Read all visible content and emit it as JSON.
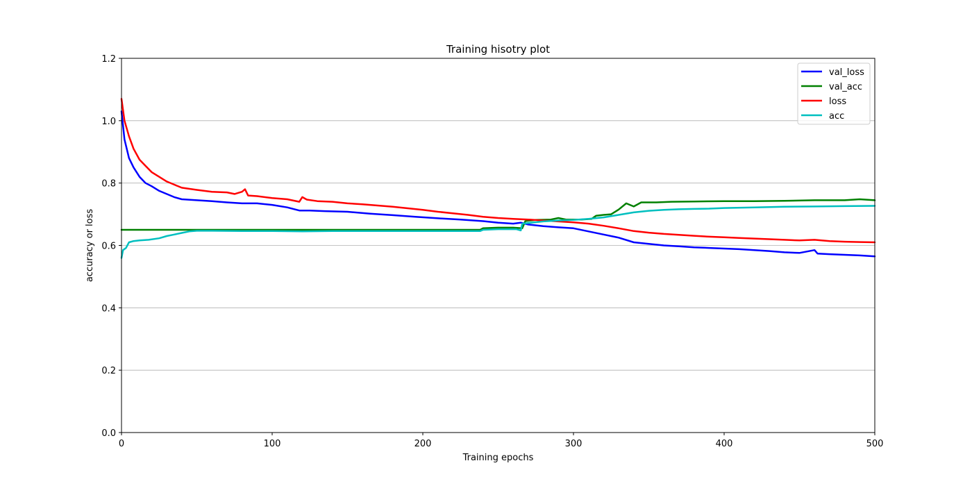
{
  "chart_data": {
    "type": "line",
    "title": "Training hisotry plot",
    "xlabel": "Training epochs",
    "ylabel": "accuracy or loss",
    "xlim": [
      0,
      500
    ],
    "ylim": [
      0,
      1.2
    ],
    "xticks": [
      0,
      100,
      200,
      300,
      400,
      500
    ],
    "yticks": [
      0.0,
      0.2,
      0.4,
      0.6,
      0.8,
      1.0,
      1.2
    ],
    "xtick_labels": [
      "0",
      "100",
      "200",
      "300",
      "400",
      "500"
    ],
    "ytick_labels": [
      "0.0",
      "0.2",
      "0.4",
      "0.6",
      "0.8",
      "1.0",
      "1.2"
    ],
    "grid": "horizontal",
    "legend_position": "top-right",
    "series": [
      {
        "name": "val_loss",
        "color": "#0000ff",
        "points": [
          [
            0,
            1.03
          ],
          [
            2,
            0.94
          ],
          [
            5,
            0.88
          ],
          [
            8,
            0.85
          ],
          [
            12,
            0.82
          ],
          [
            16,
            0.8
          ],
          [
            20,
            0.79
          ],
          [
            25,
            0.775
          ],
          [
            30,
            0.765
          ],
          [
            35,
            0.755
          ],
          [
            40,
            0.748
          ],
          [
            50,
            0.745
          ],
          [
            60,
            0.742
          ],
          [
            70,
            0.738
          ],
          [
            80,
            0.735
          ],
          [
            90,
            0.735
          ],
          [
            100,
            0.73
          ],
          [
            110,
            0.722
          ],
          [
            118,
            0.712
          ],
          [
            125,
            0.712
          ],
          [
            135,
            0.71
          ],
          [
            150,
            0.708
          ],
          [
            165,
            0.702
          ],
          [
            180,
            0.697
          ],
          [
            195,
            0.692
          ],
          [
            210,
            0.687
          ],
          [
            225,
            0.683
          ],
          [
            240,
            0.678
          ],
          [
            250,
            0.673
          ],
          [
            260,
            0.67
          ],
          [
            265,
            0.673
          ],
          [
            270,
            0.667
          ],
          [
            280,
            0.662
          ],
          [
            290,
            0.658
          ],
          [
            300,
            0.655
          ],
          [
            310,
            0.645
          ],
          [
            320,
            0.635
          ],
          [
            330,
            0.625
          ],
          [
            340,
            0.61
          ],
          [
            350,
            0.605
          ],
          [
            360,
            0.6
          ],
          [
            370,
            0.597
          ],
          [
            380,
            0.594
          ],
          [
            390,
            0.592
          ],
          [
            400,
            0.59
          ],
          [
            410,
            0.588
          ],
          [
            420,
            0.585
          ],
          [
            430,
            0.582
          ],
          [
            440,
            0.578
          ],
          [
            450,
            0.576
          ],
          [
            460,
            0.585
          ],
          [
            462,
            0.574
          ],
          [
            470,
            0.572
          ],
          [
            480,
            0.57
          ],
          [
            490,
            0.568
          ],
          [
            500,
            0.565
          ]
        ]
      },
      {
        "name": "val_acc",
        "color": "#008000",
        "points": [
          [
            0,
            0.65
          ],
          [
            50,
            0.65
          ],
          [
            100,
            0.65
          ],
          [
            150,
            0.65
          ],
          [
            200,
            0.65
          ],
          [
            238,
            0.65
          ],
          [
            240,
            0.655
          ],
          [
            250,
            0.657
          ],
          [
            260,
            0.657
          ],
          [
            266,
            0.655
          ],
          [
            268,
            0.678
          ],
          [
            275,
            0.682
          ],
          [
            285,
            0.683
          ],
          [
            290,
            0.688
          ],
          [
            295,
            0.683
          ],
          [
            305,
            0.683
          ],
          [
            312,
            0.685
          ],
          [
            315,
            0.695
          ],
          [
            320,
            0.698
          ],
          [
            325,
            0.7
          ],
          [
            330,
            0.715
          ],
          [
            335,
            0.735
          ],
          [
            340,
            0.725
          ],
          [
            345,
            0.738
          ],
          [
            355,
            0.738
          ],
          [
            365,
            0.74
          ],
          [
            380,
            0.741
          ],
          [
            400,
            0.742
          ],
          [
            420,
            0.742
          ],
          [
            440,
            0.743
          ],
          [
            460,
            0.745
          ],
          [
            480,
            0.745
          ],
          [
            490,
            0.748
          ],
          [
            500,
            0.745
          ]
        ]
      },
      {
        "name": "loss",
        "color": "#ff0000",
        "points": [
          [
            0,
            1.07
          ],
          [
            2,
            1.0
          ],
          [
            5,
            0.95
          ],
          [
            8,
            0.91
          ],
          [
            12,
            0.875
          ],
          [
            16,
            0.855
          ],
          [
            20,
            0.835
          ],
          [
            25,
            0.82
          ],
          [
            30,
            0.805
          ],
          [
            35,
            0.795
          ],
          [
            40,
            0.785
          ],
          [
            50,
            0.778
          ],
          [
            60,
            0.772
          ],
          [
            70,
            0.77
          ],
          [
            75,
            0.765
          ],
          [
            80,
            0.772
          ],
          [
            82,
            0.78
          ],
          [
            84,
            0.76
          ],
          [
            90,
            0.758
          ],
          [
            100,
            0.752
          ],
          [
            110,
            0.748
          ],
          [
            118,
            0.74
          ],
          [
            120,
            0.755
          ],
          [
            123,
            0.747
          ],
          [
            130,
            0.742
          ],
          [
            140,
            0.74
          ],
          [
            150,
            0.735
          ],
          [
            160,
            0.732
          ],
          [
            170,
            0.728
          ],
          [
            180,
            0.724
          ],
          [
            190,
            0.719
          ],
          [
            200,
            0.714
          ],
          [
            210,
            0.708
          ],
          [
            220,
            0.703
          ],
          [
            230,
            0.698
          ],
          [
            240,
            0.692
          ],
          [
            250,
            0.688
          ],
          [
            260,
            0.685
          ],
          [
            270,
            0.683
          ],
          [
            280,
            0.68
          ],
          [
            290,
            0.677
          ],
          [
            300,
            0.674
          ],
          [
            310,
            0.67
          ],
          [
            320,
            0.663
          ],
          [
            330,
            0.655
          ],
          [
            340,
            0.646
          ],
          [
            350,
            0.641
          ],
          [
            360,
            0.637
          ],
          [
            370,
            0.634
          ],
          [
            380,
            0.631
          ],
          [
            390,
            0.628
          ],
          [
            400,
            0.626
          ],
          [
            410,
            0.624
          ],
          [
            420,
            0.622
          ],
          [
            430,
            0.62
          ],
          [
            440,
            0.618
          ],
          [
            450,
            0.616
          ],
          [
            460,
            0.618
          ],
          [
            470,
            0.614
          ],
          [
            480,
            0.612
          ],
          [
            490,
            0.611
          ],
          [
            500,
            0.61
          ]
        ]
      },
      {
        "name": "acc",
        "color": "#00bfbf",
        "points": [
          [
            0,
            0.56
          ],
          [
            1,
            0.585
          ],
          [
            3,
            0.592
          ],
          [
            5,
            0.61
          ],
          [
            8,
            0.614
          ],
          [
            12,
            0.616
          ],
          [
            18,
            0.618
          ],
          [
            25,
            0.623
          ],
          [
            30,
            0.63
          ],
          [
            35,
            0.635
          ],
          [
            40,
            0.64
          ],
          [
            45,
            0.645
          ],
          [
            50,
            0.647
          ],
          [
            60,
            0.647
          ],
          [
            80,
            0.646
          ],
          [
            100,
            0.646
          ],
          [
            120,
            0.645
          ],
          [
            140,
            0.646
          ],
          [
            160,
            0.646
          ],
          [
            180,
            0.646
          ],
          [
            200,
            0.646
          ],
          [
            220,
            0.646
          ],
          [
            238,
            0.646
          ],
          [
            240,
            0.65
          ],
          [
            250,
            0.652
          ],
          [
            262,
            0.652
          ],
          [
            265,
            0.648
          ],
          [
            266,
            0.67
          ],
          [
            270,
            0.672
          ],
          [
            280,
            0.677
          ],
          [
            290,
            0.68
          ],
          [
            300,
            0.682
          ],
          [
            310,
            0.685
          ],
          [
            320,
            0.69
          ],
          [
            330,
            0.698
          ],
          [
            340,
            0.706
          ],
          [
            350,
            0.711
          ],
          [
            360,
            0.714
          ],
          [
            370,
            0.716
          ],
          [
            380,
            0.717
          ],
          [
            390,
            0.718
          ],
          [
            400,
            0.72
          ],
          [
            420,
            0.722
          ],
          [
            440,
            0.724
          ],
          [
            460,
            0.725
          ],
          [
            480,
            0.726
          ],
          [
            500,
            0.727
          ]
        ]
      }
    ]
  }
}
